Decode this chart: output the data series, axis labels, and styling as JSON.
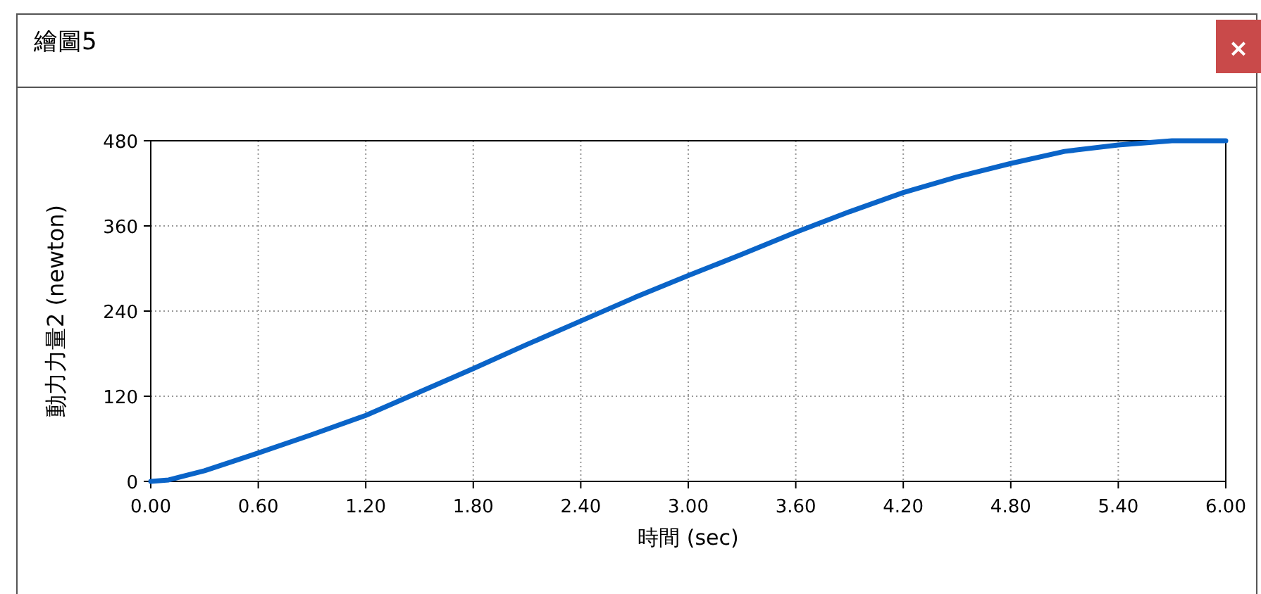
{
  "chart_data": {
    "type": "line",
    "title": "繪圖5",
    "annotations": [
      "×"
    ],
    "xlabel": "時間 (sec)",
    "ylabel": "動力力量2 (newton)",
    "x": [
      0,
      0.1,
      0.3,
      0.6,
      0.9,
      1.2,
      1.5,
      1.8,
      2.1,
      2.4,
      2.7,
      3.0,
      3.3,
      3.6,
      3.9,
      4.2,
      4.5,
      4.8,
      5.1,
      5.4,
      5.7,
      6.0
    ],
    "series": [
      {
        "color": "#0a64c8",
        "values": [
          0,
          2,
          15,
          40,
          66,
          93,
          126,
          159,
          193,
          226,
          259,
          290,
          320,
          351,
          380,
          407,
          429,
          448,
          465,
          474,
          480,
          480
        ]
      }
    ],
    "xlim": [
      0,
      6
    ],
    "ylim": [
      0,
      480
    ],
    "xticks": [
      {
        "value": 0,
        "label": "0.00"
      },
      {
        "value": 0.6,
        "label": "0.60"
      },
      {
        "value": 1.2,
        "label": "1.20"
      },
      {
        "value": 1.8,
        "label": "1.80"
      },
      {
        "value": 2.4,
        "label": "2.40"
      },
      {
        "value": 3.0,
        "label": "3.00"
      },
      {
        "value": 3.6,
        "label": "3.60"
      },
      {
        "value": 4.2,
        "label": "4.20"
      },
      {
        "value": 4.8,
        "label": "4.80"
      },
      {
        "value": 5.4,
        "label": "5.40"
      },
      {
        "value": 6.0,
        "label": "6.00"
      }
    ],
    "yticks": [
      0,
      120,
      240,
      360,
      480
    ],
    "grid": true
  }
}
